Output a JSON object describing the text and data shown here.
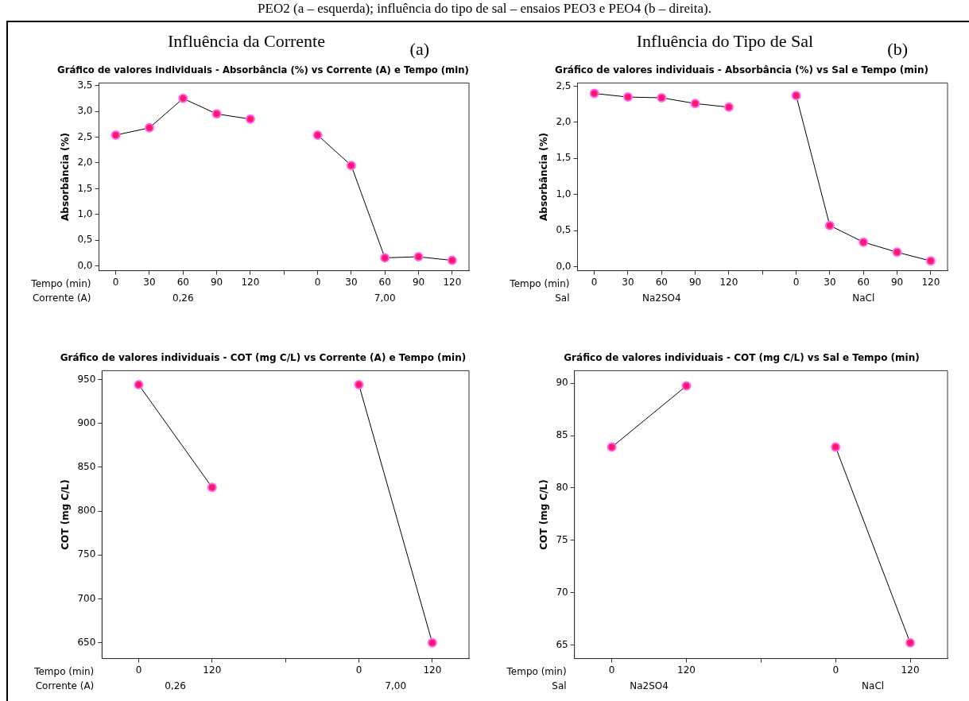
{
  "chart_data": [
    {
      "type": "line",
      "title": "Influência da Corrente",
      "subtitle": "Gráfico de valores individuais - Absorbância (%) vs Corrente (A) e Tempo (min)",
      "ylabel": "Absorbância (%)",
      "xlabel": "Tempo (min)",
      "legend_title": "Corrente (A)",
      "annotations": [
        "0,26",
        "7,00",
        "(a)",
        "PEO2 (a – esquerda); influência do tipo de sal – ensaios PEO3 e PEO4 (b – direita)."
      ],
      "categories": [
        "0",
        "30",
        "60",
        "90",
        "120",
        null,
        "0",
        "30",
        "60",
        "90",
        "120"
      ],
      "series": [
        {
          "color": "#ff1a66",
          "values": [
            2.54,
            2.68,
            3.25,
            2.95,
            2.85,
            null,
            null,
            null,
            null,
            null,
            null
          ]
        },
        {
          "color": "#ff1a66",
          "values": [
            null,
            null,
            null,
            null,
            null,
            null,
            2.54,
            1.95,
            0.16,
            0.18,
            0.11
          ]
        }
      ],
      "ylim": [
        -0.09,
        3.55
      ],
      "yticks": [
        {
          "value": 0,
          "label": "0,0"
        },
        {
          "value": 0.5,
          "label": "0,5"
        },
        {
          "value": 1,
          "label": "1,0"
        },
        {
          "value": 1.5,
          "label": "1,5"
        },
        {
          "value": 2,
          "label": "2,0"
        },
        {
          "value": 2.5,
          "label": "2,5"
        },
        {
          "value": 3,
          "label": "3,0"
        },
        {
          "value": 3.5,
          "label": "3,5"
        }
      ],
      "marker": "circle"
    },
    {
      "type": "line",
      "title": "Influência do Tipo de Sal",
      "subtitle": "Gráfico de valores individuais - Absorbância (%) vs Sal e Tempo (min)",
      "ylabel": "Absorbância (%)",
      "xlabel": "Tempo (min)",
      "legend_title": "Sal",
      "annotations": [
        "Na2SO4",
        "NaCl",
        "(b)"
      ],
      "categories": [
        "0",
        "30",
        "60",
        "90",
        "120",
        null,
        "0",
        "30",
        "60",
        "90",
        "120"
      ],
      "series": [
        {
          "color": "#ff1a66",
          "values": [
            2.4,
            2.35,
            2.34,
            2.26,
            2.21,
            null,
            null,
            null,
            null,
            null,
            null
          ]
        },
        {
          "color": "#ff1a66",
          "values": [
            null,
            null,
            null,
            null,
            null,
            null,
            2.37,
            0.57,
            0.34,
            0.2,
            0.08
          ]
        }
      ],
      "ylim": [
        -0.056,
        2.545
      ],
      "yticks": [
        {
          "value": 0,
          "label": "0,0"
        },
        {
          "value": 0.5,
          "label": "0,5"
        },
        {
          "value": 1,
          "label": "1,0"
        },
        {
          "value": 1.5,
          "label": "1,5"
        },
        {
          "value": 2,
          "label": "2,0"
        },
        {
          "value": 2.5,
          "label": "2,5"
        }
      ],
      "marker": "circle"
    },
    {
      "type": "line",
      "title": "Gráfico de valores individuais - COT (mg C/L) vs Corrente (A) e Tempo (min)",
      "ylabel": "COT (mg C/L)",
      "xlabel": "Tempo (min)",
      "legend_title": "Corrente (A)",
      "annotations": [
        "0,26",
        "7,00"
      ],
      "categories": [
        "0",
        "120",
        null,
        "0",
        "120"
      ],
      "series": [
        {
          "color": "#ff1a66",
          "values": [
            944,
            827,
            null,
            null,
            null
          ]
        },
        {
          "color": "#ff1a66",
          "values": [
            null,
            null,
            null,
            944,
            650
          ]
        }
      ],
      "ylim": [
        632,
        960
      ],
      "yticks": [
        650,
        700,
        750,
        800,
        850,
        900,
        950
      ],
      "marker": "circle"
    },
    {
      "type": "line",
      "title": "Gráfico de valores individuais - COT (mg C/L) vs Sal e Tempo (min)",
      "ylabel": "COT (mg C/L)",
      "xlabel": "Tempo (min)",
      "legend_title": "Sal",
      "annotations": [
        "Na2SO4",
        "NaCl"
      ],
      "categories": [
        "0",
        "120",
        null,
        "0",
        "120"
      ],
      "series": [
        {
          "color": "#ff1a66",
          "values": [
            83.9,
            89.75,
            null,
            null,
            null
          ]
        },
        {
          "color": "#ff1a66",
          "values": [
            null,
            null,
            null,
            83.9,
            65.2
          ]
        }
      ],
      "ylim": [
        63.7,
        91.2
      ],
      "yticks": [
        65,
        70,
        75,
        80,
        85,
        90
      ],
      "marker": "circle"
    }
  ]
}
